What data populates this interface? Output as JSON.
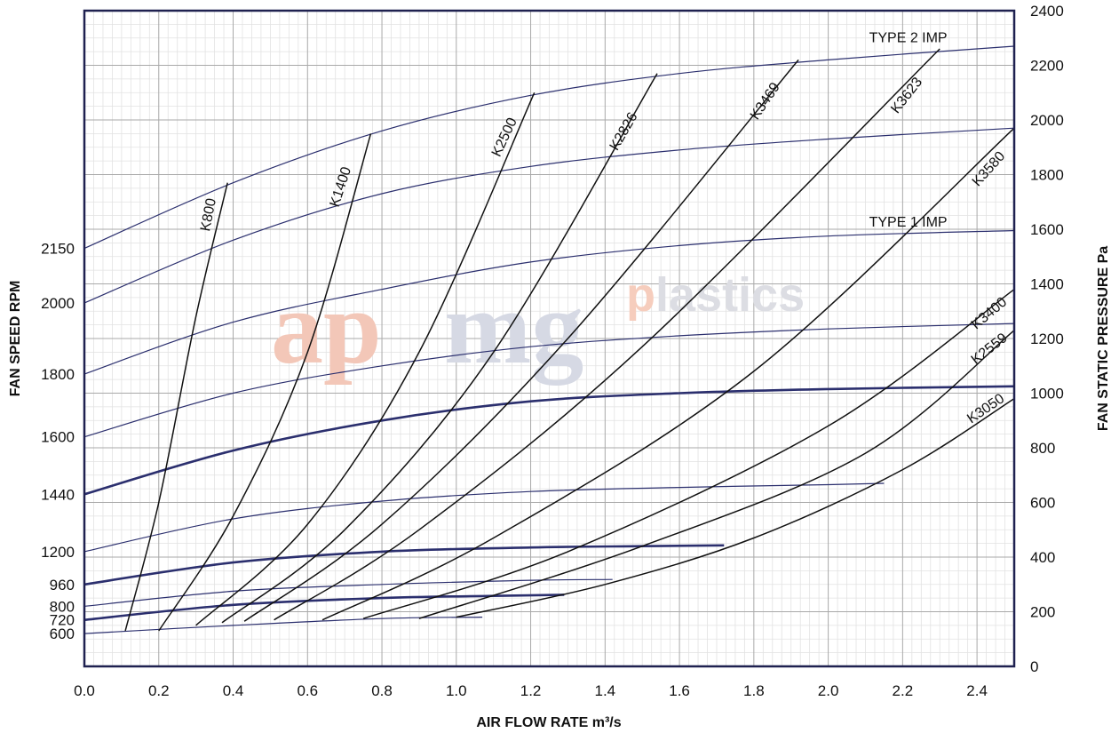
{
  "chart_data": {
    "type": "line",
    "xlabel": "AIR FLOW RATE m³/s",
    "ylabel_left": "FAN SPEED RPM",
    "ylabel_right": "FAN STATIC PRESSURE Pa",
    "xlim": [
      0,
      2.5
    ],
    "ylim": [
      0,
      2400
    ],
    "x_ticks": [
      "0.0",
      "0.2",
      "0.4",
      "0.6",
      "0.8",
      "1.0",
      "1.2",
      "1.4",
      "1.6",
      "1.8",
      "2.0",
      "2.2",
      "2.4"
    ],
    "y_right_ticks": [
      "0",
      "200",
      "400",
      "600",
      "800",
      "1000",
      "1200",
      "1400",
      "1600",
      "1800",
      "2000",
      "2200",
      "2400"
    ],
    "y_left_ticks": [
      {
        "label": "2150",
        "pressure": 1530
      },
      {
        "label": "2000",
        "pressure": 1330
      },
      {
        "label": "1800",
        "pressure": 1070
      },
      {
        "label": "1600",
        "pressure": 840
      },
      {
        "label": "1440",
        "pressure": 630
      },
      {
        "label": "1200",
        "pressure": 420
      },
      {
        "label": "960",
        "pressure": 300
      },
      {
        "label": "800",
        "pressure": 220
      },
      {
        "label": "720",
        "pressure": 170
      },
      {
        "label": "600",
        "pressure": 120
      }
    ],
    "grid": true,
    "watermark": {
      "ap": "ap",
      "mg": "mg",
      "p": "p",
      "rest": "lastics"
    },
    "speed_curves": [
      {
        "rpm": "2150",
        "label": "TYPE 2 IMP",
        "bold": false,
        "x": [
          0,
          0.4,
          0.8,
          1.2,
          1.6,
          2.0,
          2.5
        ],
        "y": [
          1530,
          1770,
          1960,
          2090,
          2170,
          2220,
          2270
        ]
      },
      {
        "rpm": "2000",
        "bold": false,
        "x": [
          0,
          0.4,
          0.8,
          1.2,
          1.6,
          2.0,
          2.5
        ],
        "y": [
          1330,
          1560,
          1730,
          1830,
          1890,
          1930,
          1970
        ]
      },
      {
        "rpm": "1800",
        "label": "TYPE 1 IMP",
        "bold": false,
        "x": [
          0,
          0.4,
          0.8,
          1.2,
          1.6,
          2.0,
          2.5
        ],
        "y": [
          1070,
          1260,
          1380,
          1480,
          1540,
          1575,
          1595
        ]
      },
      {
        "rpm": "1600",
        "bold": false,
        "x": [
          0,
          0.4,
          0.8,
          1.2,
          1.6,
          2.0,
          2.5
        ],
        "y": [
          840,
          1000,
          1100,
          1170,
          1210,
          1235,
          1255
        ]
      },
      {
        "rpm": "1440",
        "bold": true,
        "x": [
          0,
          0.4,
          0.8,
          1.2,
          1.6,
          2.0,
          2.5
        ],
        "y": [
          630,
          790,
          900,
          970,
          1000,
          1015,
          1025
        ]
      },
      {
        "rpm": "1200",
        "bold": false,
        "x": [
          0,
          0.4,
          0.8,
          1.2,
          1.6,
          2.0,
          2.15
        ],
        "y": [
          420,
          540,
          605,
          640,
          655,
          665,
          670
        ]
      },
      {
        "rpm": "960",
        "bold": true,
        "x": [
          0,
          0.4,
          0.8,
          1.2,
          1.5,
          1.72
        ],
        "y": [
          300,
          380,
          420,
          435,
          440,
          443
        ]
      },
      {
        "rpm": "800",
        "bold": false,
        "x": [
          0,
          0.4,
          0.8,
          1.2,
          1.42
        ],
        "y": [
          220,
          275,
          300,
          315,
          318
        ]
      },
      {
        "rpm": "720",
        "bold": true,
        "x": [
          0,
          0.4,
          0.8,
          1.1,
          1.29
        ],
        "y": [
          170,
          225,
          250,
          258,
          262
        ]
      },
      {
        "rpm": "600",
        "bold": false,
        "x": [
          0,
          0.4,
          0.8,
          1.07
        ],
        "y": [
          120,
          150,
          175,
          180
        ]
      }
    ],
    "system_curves": [
      {
        "name": "K800",
        "x": [
          0.11,
          0.2,
          0.3,
          0.385
        ],
        "y": [
          130,
          600,
          1280,
          1770
        ],
        "label_x": 0.345,
        "label_y": 1650,
        "label_angle": -79
      },
      {
        "name": "K1400",
        "x": [
          0.2,
          0.4,
          0.6,
          0.77
        ],
        "y": [
          130,
          550,
          1150,
          1950
        ],
        "label_x": 0.7,
        "label_y": 1750,
        "label_angle": -72
      },
      {
        "name": "K2500",
        "x": [
          0.3,
          0.6,
          0.9,
          1.21
        ],
        "y": [
          150,
          520,
          1150,
          2100
        ],
        "label_x": 1.14,
        "label_y": 1930,
        "label_angle": -65
      },
      {
        "name": "K2826",
        "x": [
          0.37,
          0.7,
          1.1,
          1.54
        ],
        "y": [
          160,
          500,
          1150,
          2170
        ],
        "label_x": 1.46,
        "label_y": 1950,
        "label_angle": -60
      },
      {
        "name": "K3469",
        "x": [
          0.43,
          0.8,
          1.3,
          1.92
        ],
        "y": [
          165,
          520,
          1200,
          2220
        ],
        "label_x": 1.84,
        "label_y": 2060,
        "label_angle": -56
      },
      {
        "name": "K3623",
        "x": [
          0.51,
          0.9,
          1.5,
          2.3
        ],
        "y": [
          170,
          500,
          1170,
          2260
        ],
        "label_x": 2.22,
        "label_y": 2080,
        "label_angle": -52
      },
      {
        "name": "K3580",
        "x": [
          0.64,
          1.1,
          1.8,
          2.5
        ],
        "y": [
          170,
          470,
          1080,
          1970
        ],
        "label_x": 2.44,
        "label_y": 1810,
        "label_angle": -48
      },
      {
        "name": "K3400",
        "x": [
          0.75,
          1.3,
          2.0,
          2.5
        ],
        "y": [
          175,
          420,
          880,
          1380
        ],
        "label_x": 2.44,
        "label_y": 1280,
        "label_angle": -40
      },
      {
        "name": "K2559",
        "x": [
          0.9,
          1.5,
          2.1,
          2.5
        ],
        "y": [
          175,
          440,
          780,
          1230
        ],
        "label_x": 2.44,
        "label_y": 1150,
        "label_angle": -38
      },
      {
        "name": "K3050",
        "x": [
          1.0,
          1.4,
          1.8,
          2.2,
          2.5
        ],
        "y": [
          180,
          300,
          470,
          720,
          980
        ],
        "label_x": 2.43,
        "label_y": 930,
        "label_angle": -34
      }
    ]
  }
}
